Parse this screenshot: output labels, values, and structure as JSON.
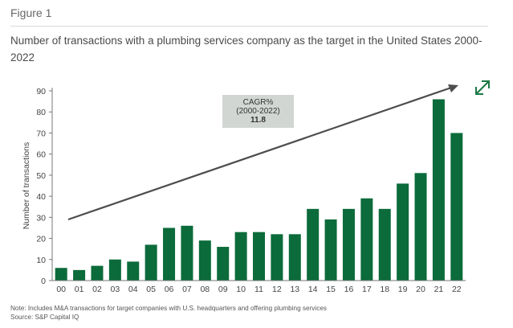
{
  "header": {
    "figure_label": "Figure 1",
    "title": "Number of transactions with a plumbing services company as the target in the United States 2000-2022"
  },
  "annotation": {
    "line1": "CAGR%",
    "line2": "(2000-2022)",
    "value": "11.8"
  },
  "footer": {
    "note": "Note: Includes M&A transactions for target companies with U.S. headquarters and offering plumbing services",
    "source": "Source: S&P Capital IQ"
  },
  "icons": {
    "expand": "expand-arrows-icon"
  },
  "colors": {
    "bar": "#0b6b3a",
    "trend": "#4d4d4d",
    "accent": "#1a7a44"
  },
  "chart_data": {
    "type": "bar",
    "title": "",
    "xlabel": "",
    "ylabel": "Number of transactions",
    "categories": [
      "00",
      "01",
      "02",
      "03",
      "04",
      "05",
      "06",
      "07",
      "08",
      "09",
      "10",
      "11",
      "12",
      "13",
      "14",
      "15",
      "16",
      "17",
      "18",
      "19",
      "20",
      "21",
      "22"
    ],
    "values": [
      6,
      5,
      7,
      10,
      9,
      17,
      25,
      26,
      19,
      16,
      23,
      23,
      22,
      22,
      34,
      29,
      34,
      39,
      34,
      46,
      51,
      86,
      70
    ],
    "ylim": [
      0,
      90
    ],
    "yticks": [
      0,
      10,
      20,
      30,
      40,
      50,
      60,
      70,
      80,
      90
    ],
    "grid": false,
    "legend": "none",
    "trend_arrow": true
  }
}
